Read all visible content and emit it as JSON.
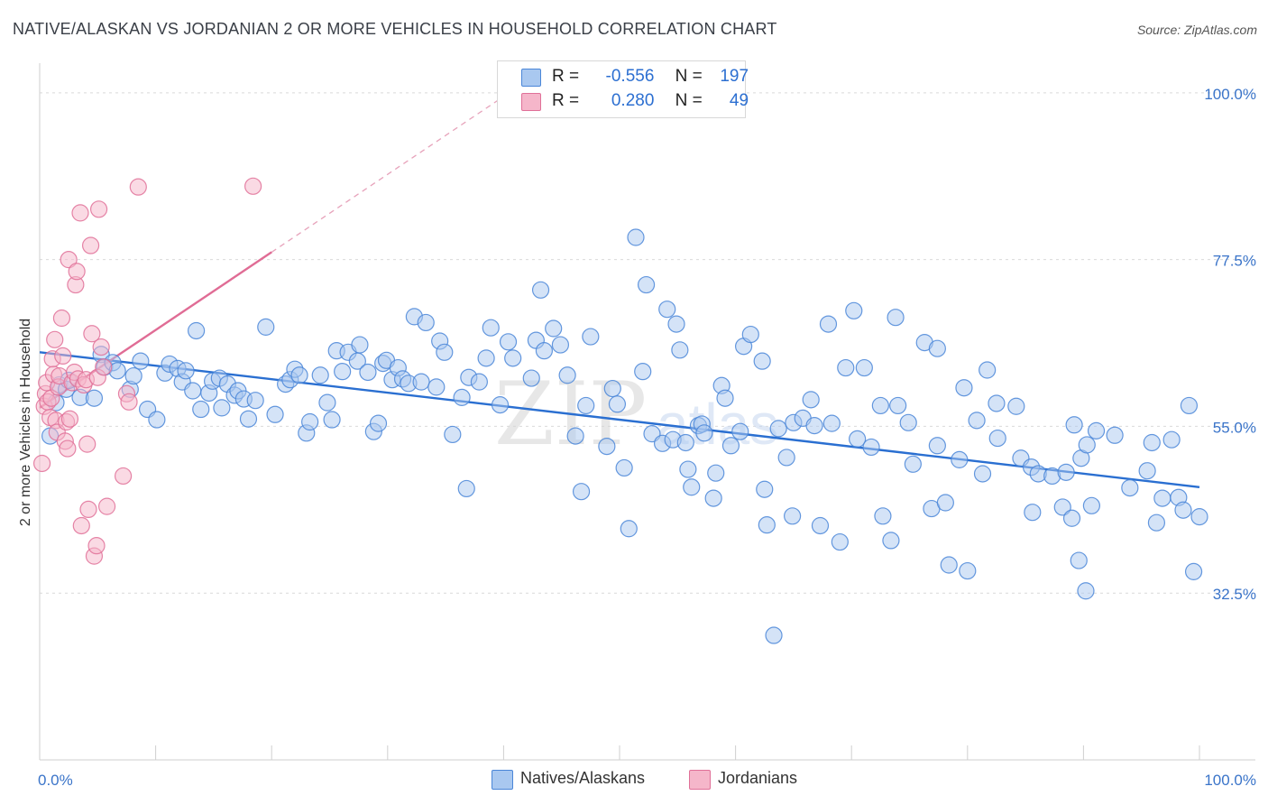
{
  "title": "NATIVE/ALASKAN VS JORDANIAN 2 OR MORE VEHICLES IN HOUSEHOLD CORRELATION CHART",
  "source": "Source: ZipAtlas.com",
  "legend": {
    "rows": [
      {
        "r_label": "R =",
        "r_value": "-0.556",
        "n_label": "N =",
        "n_value": "197",
        "color": "#a9c8f0"
      },
      {
        "r_label": "R =",
        "r_value": "0.280",
        "n_label": "N =",
        "n_value": "49",
        "color": "#f5b6ca"
      }
    ]
  },
  "bottom_legend": [
    {
      "label": "Natives/Alaskans",
      "color": "#a9c8f0"
    },
    {
      "label": "Jordanians",
      "color": "#f5b6ca"
    }
  ],
  "chart_data": {
    "type": "scatter",
    "title": "NATIVE/ALASKAN VS JORDANIAN 2 OR MORE VEHICLES IN HOUSEHOLD CORRELATION CHART",
    "xlabel": "",
    "ylabel": "2 or more Vehicles in Household",
    "xlim": [
      0,
      100
    ],
    "ylim": [
      10,
      104
    ],
    "x_tick_labels": [
      "0.0%",
      "100.0%"
    ],
    "y_ticks": [
      32.5,
      55.0,
      77.5,
      100.0
    ],
    "y_tick_labels": [
      "32.5%",
      "55.0%",
      "77.5%",
      "100.0%"
    ],
    "grid": true,
    "watermark": "ZIPatlas",
    "series": [
      {
        "name": "Natives/Alaskans",
        "color": "#4a86d8",
        "fill": "#a9c8f0",
        "trend": {
          "x": [
            0,
            100
          ],
          "y": [
            65.0,
            46.8
          ]
        },
        "points": [
          [
            0.9,
            53.7
          ],
          [
            1.4,
            58.2
          ],
          [
            1.7,
            60.6
          ],
          [
            2.3,
            60.0
          ],
          [
            2.5,
            61.2
          ],
          [
            3.5,
            58.9
          ],
          [
            4.7,
            58.8
          ],
          [
            5.3,
            64.7
          ],
          [
            5.6,
            63.0
          ],
          [
            6.3,
            63.6
          ],
          [
            6.7,
            62.5
          ],
          [
            7.8,
            60.0
          ],
          [
            8.1,
            61.8
          ],
          [
            8.7,
            63.8
          ],
          [
            9.3,
            57.3
          ],
          [
            10.1,
            55.9
          ],
          [
            10.8,
            62.2
          ],
          [
            11.2,
            63.4
          ],
          [
            11.9,
            62.8
          ],
          [
            12.3,
            61.0
          ],
          [
            12.6,
            62.5
          ],
          [
            13.2,
            59.8
          ],
          [
            13.5,
            67.9
          ],
          [
            13.9,
            57.3
          ],
          [
            14.6,
            59.5
          ],
          [
            14.9,
            61.1
          ],
          [
            15.5,
            61.5
          ],
          [
            15.7,
            57.5
          ],
          [
            16.2,
            60.7
          ],
          [
            16.8,
            59.2
          ],
          [
            17.1,
            59.8
          ],
          [
            17.6,
            58.7
          ],
          [
            18.0,
            56.0
          ],
          [
            18.6,
            58.5
          ],
          [
            19.5,
            68.4
          ],
          [
            20.3,
            56.6
          ],
          [
            21.2,
            60.7
          ],
          [
            21.6,
            61.3
          ],
          [
            22.0,
            62.7
          ],
          [
            22.4,
            61.9
          ],
          [
            23.0,
            54.1
          ],
          [
            23.3,
            55.6
          ],
          [
            24.2,
            61.9
          ],
          [
            24.8,
            58.2
          ],
          [
            25.2,
            55.9
          ],
          [
            25.6,
            65.2
          ],
          [
            26.1,
            62.4
          ],
          [
            26.6,
            65.0
          ],
          [
            27.4,
            63.8
          ],
          [
            27.6,
            66.0
          ],
          [
            28.3,
            62.3
          ],
          [
            28.8,
            54.3
          ],
          [
            29.2,
            55.4
          ],
          [
            29.6,
            63.5
          ],
          [
            29.9,
            63.9
          ],
          [
            30.4,
            61.3
          ],
          [
            30.9,
            62.9
          ],
          [
            31.3,
            61.4
          ],
          [
            31.8,
            60.8
          ],
          [
            32.3,
            69.8
          ],
          [
            32.9,
            61.0
          ],
          [
            33.3,
            69.0
          ],
          [
            34.2,
            60.3
          ],
          [
            34.5,
            66.5
          ],
          [
            34.9,
            65.0
          ],
          [
            35.6,
            53.9
          ],
          [
            36.4,
            58.9
          ],
          [
            36.8,
            46.6
          ],
          [
            37.0,
            61.6
          ],
          [
            37.9,
            61.0
          ],
          [
            38.5,
            64.2
          ],
          [
            38.9,
            68.3
          ],
          [
            39.7,
            57.9
          ],
          [
            40.4,
            66.4
          ],
          [
            40.8,
            64.2
          ],
          [
            42.4,
            61.5
          ],
          [
            42.8,
            66.6
          ],
          [
            43.2,
            73.4
          ],
          [
            43.5,
            65.2
          ],
          [
            44.3,
            68.2
          ],
          [
            44.9,
            66.0
          ],
          [
            45.5,
            61.9
          ],
          [
            46.2,
            53.7
          ],
          [
            46.7,
            46.2
          ],
          [
            47.1,
            57.8
          ],
          [
            47.5,
            67.1
          ],
          [
            48.9,
            52.3
          ],
          [
            49.4,
            60.1
          ],
          [
            49.8,
            58.0
          ],
          [
            50.4,
            49.4
          ],
          [
            50.8,
            41.2
          ],
          [
            51.4,
            80.5
          ],
          [
            52.0,
            62.4
          ],
          [
            52.3,
            74.1
          ],
          [
            52.8,
            54.0
          ],
          [
            53.7,
            52.7
          ],
          [
            54.1,
            70.8
          ],
          [
            54.6,
            53.2
          ],
          [
            54.9,
            68.8
          ],
          [
            55.2,
            65.3
          ],
          [
            55.7,
            52.8
          ],
          [
            55.9,
            49.2
          ],
          [
            56.2,
            46.8
          ],
          [
            56.8,
            55.1
          ],
          [
            57.1,
            55.3
          ],
          [
            57.3,
            54.1
          ],
          [
            58.1,
            45.3
          ],
          [
            58.3,
            48.7
          ],
          [
            58.8,
            60.5
          ],
          [
            59.1,
            58.8
          ],
          [
            59.6,
            52.4
          ],
          [
            60.4,
            54.3
          ],
          [
            60.7,
            65.8
          ],
          [
            61.3,
            67.4
          ],
          [
            62.3,
            63.8
          ],
          [
            62.5,
            46.5
          ],
          [
            62.7,
            41.7
          ],
          [
            63.3,
            26.8
          ],
          [
            63.7,
            54.7
          ],
          [
            64.4,
            50.8
          ],
          [
            64.9,
            42.9
          ],
          [
            65.0,
            55.5
          ],
          [
            65.8,
            56.1
          ],
          [
            66.5,
            58.6
          ],
          [
            66.8,
            55.1
          ],
          [
            67.3,
            41.6
          ],
          [
            68.0,
            68.8
          ],
          [
            68.3,
            55.4
          ],
          [
            69.0,
            39.4
          ],
          [
            69.5,
            62.9
          ],
          [
            70.2,
            70.6
          ],
          [
            70.5,
            53.3
          ],
          [
            71.1,
            62.9
          ],
          [
            71.7,
            52.2
          ],
          [
            72.5,
            57.8
          ],
          [
            72.7,
            42.9
          ],
          [
            73.4,
            39.6
          ],
          [
            73.8,
            69.7
          ],
          [
            74.0,
            57.8
          ],
          [
            74.9,
            55.5
          ],
          [
            75.3,
            49.9
          ],
          [
            76.3,
            66.3
          ],
          [
            76.9,
            43.9
          ],
          [
            77.4,
            65.5
          ],
          [
            77.4,
            52.4
          ],
          [
            78.1,
            44.7
          ],
          [
            78.4,
            36.3
          ],
          [
            79.3,
            50.5
          ],
          [
            79.7,
            60.2
          ],
          [
            80.0,
            35.5
          ],
          [
            80.8,
            55.8
          ],
          [
            81.3,
            48.6
          ],
          [
            81.7,
            62.6
          ],
          [
            82.5,
            58.1
          ],
          [
            82.6,
            53.4
          ],
          [
            84.2,
            57.7
          ],
          [
            84.6,
            50.7
          ],
          [
            85.5,
            49.5
          ],
          [
            85.6,
            43.4
          ],
          [
            86.1,
            48.6
          ],
          [
            87.3,
            48.3
          ],
          [
            88.2,
            44.1
          ],
          [
            88.5,
            48.8
          ],
          [
            89.0,
            42.6
          ],
          [
            89.2,
            55.2
          ],
          [
            89.6,
            36.9
          ],
          [
            89.8,
            50.7
          ],
          [
            90.2,
            32.8
          ],
          [
            90.3,
            52.5
          ],
          [
            90.7,
            44.3
          ],
          [
            91.1,
            54.4
          ],
          [
            92.7,
            53.8
          ],
          [
            94.0,
            46.7
          ],
          [
            95.5,
            49.0
          ],
          [
            95.9,
            52.8
          ],
          [
            96.3,
            42.0
          ],
          [
            96.8,
            45.3
          ],
          [
            97.6,
            53.2
          ],
          [
            98.2,
            45.4
          ],
          [
            98.6,
            43.7
          ],
          [
            99.1,
            57.8
          ],
          [
            99.5,
            35.4
          ],
          [
            100.0,
            42.8
          ]
        ]
      },
      {
        "name": "Jordanians",
        "color": "#e07098",
        "fill": "#f5b6ca",
        "trend": {
          "x": [
            0,
            20
          ],
          "y": [
            57.5,
            78.5
          ]
        },
        "trend_extension": {
          "x": [
            20,
            40
          ],
          "y": [
            78.5,
            99.5
          ]
        },
        "points": [
          [
            0.2,
            50.0
          ],
          [
            0.4,
            57.7
          ],
          [
            0.5,
            59.4
          ],
          [
            0.6,
            60.9
          ],
          [
            0.7,
            58.3
          ],
          [
            0.9,
            56.2
          ],
          [
            1.0,
            58.8
          ],
          [
            1.1,
            64.1
          ],
          [
            1.2,
            62.0
          ],
          [
            1.3,
            66.7
          ],
          [
            1.4,
            55.8
          ],
          [
            1.5,
            54.2
          ],
          [
            1.6,
            60.3
          ],
          [
            1.7,
            61.8
          ],
          [
            1.9,
            69.6
          ],
          [
            2.0,
            64.5
          ],
          [
            2.2,
            53.0
          ],
          [
            2.3,
            55.6
          ],
          [
            2.4,
            52.0
          ],
          [
            2.5,
            77.5
          ],
          [
            2.6,
            56.0
          ],
          [
            2.8,
            60.9
          ],
          [
            3.0,
            62.3
          ],
          [
            3.1,
            74.1
          ],
          [
            3.2,
            75.9
          ],
          [
            3.3,
            61.4
          ],
          [
            3.5,
            83.8
          ],
          [
            3.6,
            41.6
          ],
          [
            3.8,
            60.6
          ],
          [
            4.0,
            61.3
          ],
          [
            4.1,
            52.6
          ],
          [
            4.2,
            43.8
          ],
          [
            4.4,
            79.4
          ],
          [
            4.5,
            67.5
          ],
          [
            4.7,
            37.5
          ],
          [
            4.9,
            38.9
          ],
          [
            5.0,
            61.6
          ],
          [
            5.1,
            84.3
          ],
          [
            5.3,
            65.7
          ],
          [
            5.5,
            63.0
          ],
          [
            5.8,
            44.2
          ],
          [
            7.2,
            48.3
          ],
          [
            7.5,
            59.4
          ],
          [
            7.7,
            58.3
          ],
          [
            8.5,
            87.3
          ],
          [
            18.4,
            87.4
          ]
        ]
      }
    ]
  }
}
